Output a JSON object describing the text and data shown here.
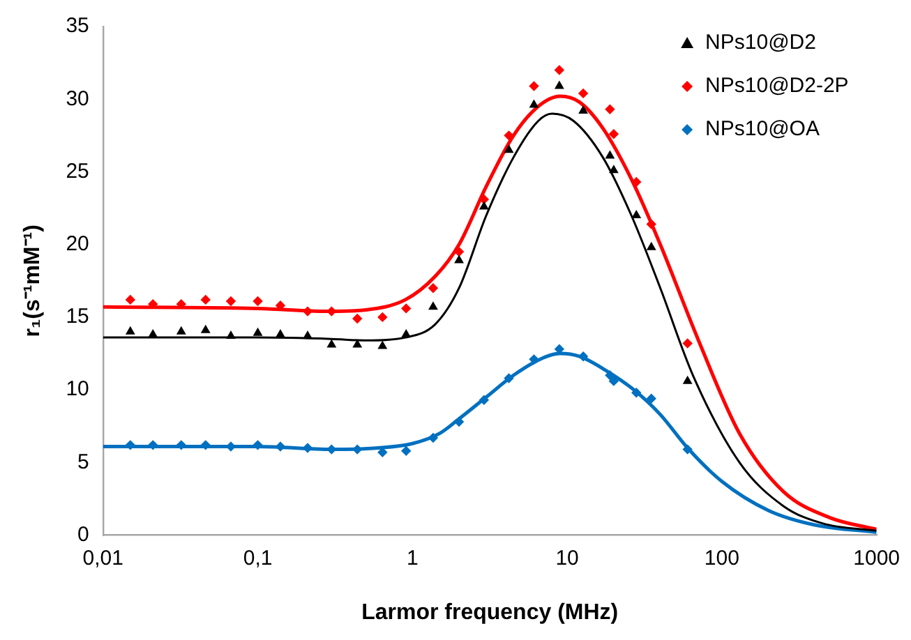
{
  "chart_data": {
    "type": "scatter",
    "xlabel": "Larmor frequency (MHz)",
    "ylabel": "r₁(s⁻¹mM⁻¹)",
    "log": "x",
    "grid": false,
    "legend": "top right",
    "xlim": [
      0.01,
      1000
    ],
    "xticks": [
      {
        "value": 0.01,
        "label": "0,01"
      },
      {
        "value": 0.1,
        "label": "0,1"
      },
      1,
      10,
      100,
      1000
    ],
    "ylim": [
      0,
      35
    ],
    "yticks": [
      0,
      5,
      10,
      15,
      20,
      25,
      30,
      35
    ],
    "series": [
      {
        "name": "NPs10@D2",
        "marker": "triangle",
        "color": "#000000",
        "x": [
          0.015,
          0.021,
          0.032,
          0.046,
          0.067,
          0.1,
          0.14,
          0.21,
          0.3,
          0.44,
          0.64,
          0.91,
          1.36,
          2.0,
          2.9,
          4.2,
          6.1,
          8.9,
          12.7,
          18.9,
          20,
          28,
          35,
          60
        ],
        "values": [
          14.0,
          13.8,
          14.0,
          14.1,
          13.7,
          13.9,
          13.8,
          13.7,
          13.1,
          13.1,
          13.0,
          13.8,
          15.7,
          18.9,
          22.6,
          26.5,
          29.6,
          30.9,
          29.2,
          26.1,
          25.1,
          22.0,
          19.8,
          10.6
        ]
      },
      {
        "name": "NPs10@D2-2P",
        "marker": "diamond",
        "color": "#ff0000",
        "x": [
          0.015,
          0.021,
          0.032,
          0.046,
          0.067,
          0.1,
          0.14,
          0.21,
          0.3,
          0.44,
          0.64,
          0.91,
          1.36,
          2.0,
          2.9,
          4.2,
          6.1,
          8.9,
          12.7,
          18.9,
          20,
          28,
          35,
          60
        ],
        "values": [
          16.2,
          15.9,
          15.9,
          16.2,
          16.1,
          16.1,
          15.8,
          15.4,
          15.4,
          14.9,
          15.0,
          15.6,
          17.0,
          19.5,
          23.1,
          27.5,
          30.9,
          32.0,
          30.4,
          29.3,
          27.6,
          24.3,
          21.4,
          13.2
        ]
      },
      {
        "name": "NPs10@OA",
        "marker": "diamond",
        "color": "#0070c0",
        "x": [
          0.015,
          0.021,
          0.032,
          0.046,
          0.067,
          0.1,
          0.14,
          0.21,
          0.3,
          0.44,
          0.64,
          0.91,
          1.36,
          2.0,
          2.9,
          4.2,
          6.1,
          8.9,
          12.7,
          18.9,
          20,
          28,
          35,
          60
        ],
        "values": [
          6.2,
          6.2,
          6.2,
          6.2,
          6.1,
          6.2,
          6.1,
          6.0,
          5.9,
          5.9,
          5.7,
          5.8,
          6.7,
          7.8,
          9.3,
          10.8,
          12.1,
          12.8,
          12.3,
          11.0,
          10.6,
          9.8,
          9.4,
          5.9
        ]
      },
      {
        "type": "line",
        "marker": "none",
        "color": "#000000",
        "x": [
          0.01,
          0.1,
          0.3,
          0.5,
          0.9,
          1.4,
          2,
          3,
          4.5,
          6.5,
          8,
          11,
          17,
          26,
          40,
          65,
          130,
          250,
          450,
          1000
        ],
        "values": [
          13.6,
          13.6,
          13.5,
          13.4,
          13.6,
          14.5,
          17,
          22,
          26,
          28.5,
          29,
          28.5,
          26,
          22,
          17,
          11,
          5,
          2,
          0.8,
          0.3
        ]
      },
      {
        "type": "line",
        "marker": "none",
        "color": "#ff0000",
        "x": [
          0.01,
          0.1,
          0.3,
          0.5,
          0.9,
          1.4,
          2,
          3,
          4.5,
          6.5,
          9,
          12,
          17,
          26,
          40,
          70,
          130,
          250,
          500,
          1000
        ],
        "values": [
          15.7,
          15.6,
          15.4,
          15.5,
          16.2,
          17.8,
          20,
          24,
          27.5,
          29.5,
          30.2,
          29.8,
          28,
          24.5,
          20,
          13.5,
          7,
          3,
          1.2,
          0.4
        ]
      },
      {
        "type": "line",
        "marker": "none",
        "color": "#0070c0",
        "x": [
          0.01,
          0.1,
          0.3,
          0.6,
          1,
          1.5,
          2,
          3,
          4.5,
          7,
          9,
          12,
          18,
          27,
          40,
          60,
          100,
          200,
          400,
          1000
        ],
        "values": [
          6.1,
          6.1,
          5.9,
          6.0,
          6.3,
          7,
          8,
          9.5,
          11,
          12.2,
          12.5,
          12.3,
          11.3,
          10,
          8.3,
          6,
          3.7,
          1.7,
          0.7,
          0.2
        ]
      }
    ]
  }
}
